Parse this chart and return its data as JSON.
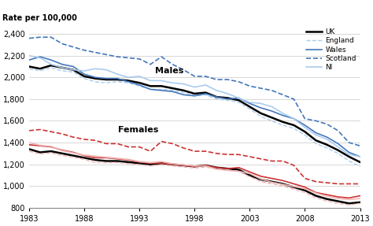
{
  "years": [
    1983,
    1984,
    1985,
    1986,
    1987,
    1988,
    1989,
    1990,
    1991,
    1992,
    1993,
    1994,
    1995,
    1996,
    1997,
    1998,
    1999,
    2000,
    2001,
    2002,
    2003,
    2004,
    2005,
    2006,
    2007,
    2008,
    2009,
    2010,
    2011,
    2012,
    2013
  ],
  "males": {
    "UK": [
      2100,
      2080,
      2110,
      2090,
      2070,
      2010,
      1990,
      1980,
      1980,
      1970,
      1950,
      1920,
      1920,
      1900,
      1880,
      1850,
      1860,
      1820,
      1810,
      1790,
      1730,
      1670,
      1630,
      1590,
      1560,
      1500,
      1420,
      1380,
      1330,
      1270,
      1220
    ],
    "England": [
      2080,
      2060,
      2090,
      2060,
      2050,
      1990,
      1960,
      1950,
      1960,
      1950,
      1920,
      1890,
      1890,
      1880,
      1860,
      1830,
      1840,
      1800,
      1790,
      1770,
      1710,
      1640,
      1600,
      1560,
      1530,
      1470,
      1390,
      1350,
      1300,
      1230,
      1180
    ],
    "Wales": [
      2160,
      2190,
      2160,
      2120,
      2100,
      2030,
      2000,
      1990,
      1990,
      1960,
      1930,
      1890,
      1880,
      1870,
      1840,
      1830,
      1850,
      1820,
      1800,
      1810,
      1760,
      1720,
      1690,
      1650,
      1620,
      1560,
      1490,
      1450,
      1390,
      1310,
      1270
    ],
    "Scotland": [
      2360,
      2370,
      2370,
      2310,
      2280,
      2250,
      2230,
      2210,
      2190,
      2180,
      2170,
      2120,
      2190,
      2120,
      2070,
      2010,
      2010,
      1980,
      1980,
      1960,
      1920,
      1900,
      1880,
      1840,
      1800,
      1620,
      1600,
      1570,
      1510,
      1400,
      1370
    ],
    "NI": [
      2200,
      2180,
      2120,
      2090,
      2070,
      2060,
      2080,
      2070,
      2030,
      2000,
      2010,
      1970,
      1970,
      1950,
      1940,
      1910,
      1930,
      1880,
      1850,
      1810,
      1770,
      1760,
      1730,
      1670,
      1620,
      1540,
      1470,
      1430,
      1360,
      1290,
      1270
    ]
  },
  "females": {
    "UK": [
      1340,
      1310,
      1320,
      1300,
      1280,
      1260,
      1240,
      1230,
      1230,
      1220,
      1210,
      1200,
      1210,
      1200,
      1190,
      1180,
      1190,
      1170,
      1160,
      1150,
      1100,
      1060,
      1040,
      1020,
      990,
      960,
      910,
      880,
      860,
      840,
      850
    ],
    "England": [
      1320,
      1295,
      1305,
      1280,
      1265,
      1245,
      1215,
      1215,
      1215,
      1205,
      1195,
      1185,
      1195,
      1185,
      1175,
      1165,
      1175,
      1155,
      1145,
      1135,
      1085,
      1040,
      1020,
      1000,
      970,
      940,
      890,
      860,
      840,
      825,
      840
    ],
    "Wales": [
      1380,
      1370,
      1360,
      1330,
      1310,
      1280,
      1260,
      1260,
      1250,
      1240,
      1220,
      1210,
      1210,
      1200,
      1190,
      1180,
      1190,
      1170,
      1160,
      1170,
      1130,
      1090,
      1070,
      1050,
      1020,
      990,
      940,
      920,
      900,
      890,
      910
    ],
    "Scotland": [
      1510,
      1520,
      1500,
      1480,
      1450,
      1430,
      1420,
      1390,
      1390,
      1360,
      1360,
      1320,
      1410,
      1390,
      1350,
      1320,
      1320,
      1300,
      1290,
      1290,
      1270,
      1250,
      1230,
      1230,
      1190,
      1070,
      1040,
      1030,
      1020,
      1020,
      1020
    ],
    "NI": [
      1400,
      1375,
      1365,
      1325,
      1305,
      1285,
      1275,
      1265,
      1255,
      1245,
      1225,
      1215,
      1225,
      1205,
      1195,
      1185,
      1185,
      1155,
      1145,
      1135,
      1115,
      1065,
      1035,
      1015,
      995,
      975,
      935,
      905,
      885,
      875,
      885
    ]
  },
  "ylim": [
    800,
    2450
  ],
  "yticks": [
    800,
    1000,
    1200,
    1400,
    1600,
    1800,
    2000,
    2200,
    2400
  ],
  "xticks": [
    1983,
    1988,
    1993,
    1998,
    2003,
    2008,
    2013
  ],
  "xlim": [
    1983,
    2013
  ],
  "ylabel_text": "Rate per 100,000",
  "males_label": "Males",
  "females_label": "Females",
  "legend_labels": [
    "UK",
    "England",
    "Wales",
    "Scotland",
    "NI"
  ],
  "male_styles": {
    "UK": {
      "color": "#000000",
      "lw": 1.8,
      "ls": "-"
    },
    "England": {
      "color": "#aaccee",
      "lw": 1.0,
      "ls": "--"
    },
    "Wales": {
      "color": "#4477bb",
      "lw": 1.2,
      "ls": "-"
    },
    "Scotland": {
      "color": "#4477bb",
      "lw": 1.2,
      "ls": "--"
    },
    "NI": {
      "color": "#aaccee",
      "lw": 1.2,
      "ls": "-"
    }
  },
  "female_styles": {
    "UK": {
      "color": "#000000",
      "lw": 1.8,
      "ls": "-"
    },
    "England": {
      "color": "#f0b8b8",
      "lw": 1.0,
      "ls": "--"
    },
    "Wales": {
      "color": "#cc3333",
      "lw": 1.2,
      "ls": "-"
    },
    "Scotland": {
      "color": "#cc3333",
      "lw": 1.2,
      "ls": "--"
    },
    "NI": {
      "color": "#f0b8b8",
      "lw": 1.2,
      "ls": "-"
    }
  },
  "legend_styles": [
    {
      "color": "#000000",
      "lw": 1.8,
      "ls": "-"
    },
    {
      "color": "#aaccee",
      "lw": 1.0,
      "ls": "--"
    },
    {
      "color": "#4477bb",
      "lw": 1.2,
      "ls": "-"
    },
    {
      "color": "#4477bb",
      "lw": 1.2,
      "ls": "--"
    },
    {
      "color": "#aaccee",
      "lw": 1.2,
      "ls": "-"
    }
  ],
  "bg_color": "#ffffff",
  "grid_color": "#c8c8c8"
}
